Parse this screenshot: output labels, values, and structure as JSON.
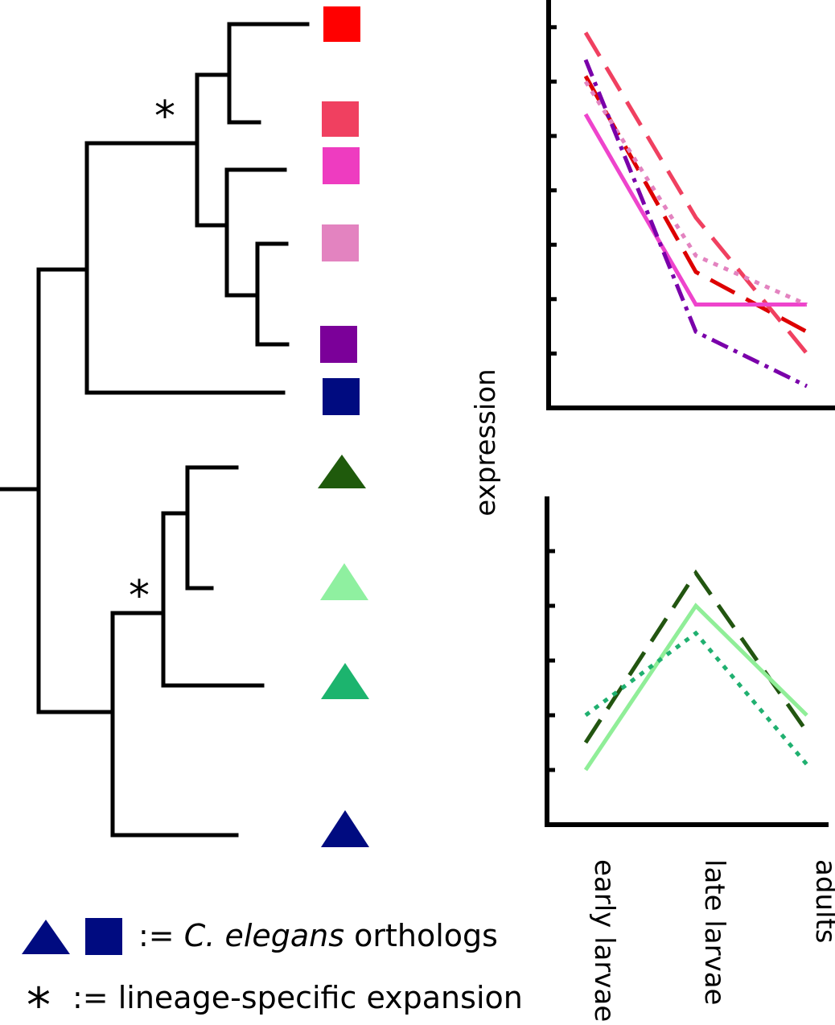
{
  "chart_data": [
    {
      "type": "line",
      "ylim": [
        0,
        7.5
      ],
      "yticks": [
        1,
        2,
        3,
        4,
        5,
        6,
        7
      ],
      "series": [
        {
          "color": "#dd0000",
          "style": "dashed",
          "values": [
            6.1,
            2.5,
            1.4
          ]
        },
        {
          "color": "#f04060",
          "style": "dashed",
          "values": [
            6.9,
            3.5,
            1.0
          ]
        },
        {
          "color": "#ee44cc",
          "style": "solid",
          "values": [
            5.4,
            1.9,
            1.9
          ]
        },
        {
          "color": "#e383c0",
          "style": "dotted",
          "values": [
            6.0,
            2.8,
            1.9
          ]
        },
        {
          "color": "#7a00aa",
          "style": "dashdot",
          "values": [
            6.4,
            1.4,
            0.4
          ]
        }
      ]
    },
    {
      "type": "line",
      "y_label": "expression",
      "categories": [
        "early larvae",
        "late larvae",
        "adults"
      ],
      "ylim": [
        0,
        6
      ],
      "yticks": [
        1,
        2,
        3,
        4,
        5
      ],
      "series": [
        {
          "color": "#225510",
          "style": "dashed",
          "values": [
            1.5,
            4.6,
            1.7
          ]
        },
        {
          "color": "#90ee98",
          "style": "solid",
          "values": [
            1.0,
            4.0,
            2.0
          ]
        },
        {
          "color": "#20b070",
          "style": "dotted",
          "values": [
            2.0,
            3.5,
            1.1
          ]
        }
      ]
    }
  ],
  "legend": {
    "orthologs": {
      "sign": ":=",
      "species": "C. elegans",
      "label": "orthologs"
    },
    "expansion": {
      "symbol": "*",
      "text": ":= lineage-specific expansion"
    }
  }
}
